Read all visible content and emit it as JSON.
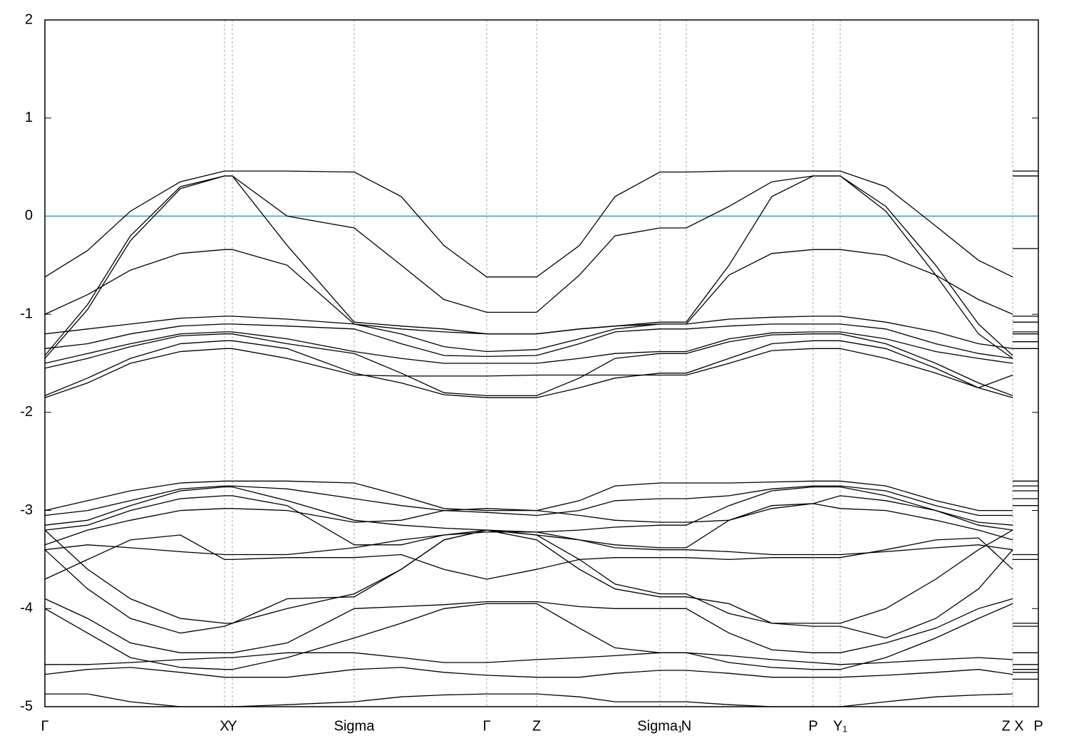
{
  "chart_data": {
    "type": "line",
    "x": [
      0,
      0.6,
      1.2,
      1.9,
      2.52,
      2.63,
      3.4,
      4.34,
      5.0,
      5.6,
      6.2,
      6.9,
      7.5,
      8.0,
      8.63,
      9.0,
      9.6,
      10.2,
      10.78,
      11.16,
      11.8,
      12.5,
      13.1,
      13.58,
      13.58,
      13.58,
      13.94
    ],
    "xlim": [
      0,
      13.94
    ],
    "xticks": [
      {
        "value": 0,
        "label": "Γ"
      },
      {
        "value": 2.52,
        "label": "X"
      },
      {
        "value": 2.63,
        "label": "Y"
      },
      {
        "value": 4.34,
        "label": "Sigma"
      },
      {
        "value": 6.2,
        "label": "Γ"
      },
      {
        "value": 6.9,
        "label": "Z"
      },
      {
        "value": 8.63,
        "label": "Sigma₁"
      },
      {
        "value": 9.0,
        "label": "N"
      },
      {
        "value": 10.78,
        "label": "P"
      },
      {
        "value": 11.16,
        "label": "Y₁"
      },
      {
        "value": 13.58,
        "label": "Z X"
      },
      {
        "value": 13.94,
        "label": "P"
      }
    ],
    "ylim": [
      -5,
      2
    ],
    "yticks": [
      -5,
      -4,
      -3,
      -2,
      -1,
      0,
      1,
      2
    ],
    "xgrid": true,
    "hline": 0,
    "hline_color": "#3a9fb5",
    "series": [
      {
        "color": "#000000",
        "values": [
          -0.62,
          -0.35,
          0.05,
          0.35,
          0.46,
          0.46,
          0.46,
          0.45,
          0.2,
          -0.3,
          -0.62,
          -0.62,
          -0.3,
          0.2,
          0.45,
          0.45,
          0.46,
          0.46,
          0.46,
          0.46,
          0.3,
          -0.1,
          -0.45,
          -0.62,
          null,
          0.46,
          0.46
        ]
      },
      {
        "color": "#000000",
        "values": [
          -1.0,
          -0.8,
          -0.55,
          -0.38,
          -0.34,
          -0.34,
          -0.5,
          -1.1,
          -1.15,
          -1.18,
          -1.2,
          -1.2,
          -1.15,
          -1.12,
          -1.1,
          -1.1,
          -0.6,
          -0.38,
          -0.34,
          -0.34,
          -0.4,
          -0.6,
          -0.85,
          -1.0,
          null,
          -0.33,
          -0.33
        ]
      },
      {
        "color": "#000000",
        "values": [
          -1.42,
          -0.9,
          -0.2,
          0.3,
          0.41,
          0.41,
          0.0,
          -0.12,
          -0.5,
          -0.85,
          -0.98,
          -0.98,
          -0.6,
          -0.2,
          -0.12,
          -0.12,
          0.1,
          0.35,
          0.41,
          0.41,
          0.1,
          -0.5,
          -1.1,
          -1.42,
          null,
          0.41,
          0.41
        ]
      },
      {
        "color": "#000000",
        "values": [
          -1.45,
          -0.95,
          -0.25,
          0.28,
          0.41,
          0.41,
          -0.3,
          -1.08,
          -1.12,
          -1.15,
          -1.2,
          -1.2,
          -1.15,
          -1.12,
          -1.08,
          -1.08,
          -0.5,
          0.2,
          0.41,
          0.41,
          0.05,
          -0.6,
          -1.2,
          -1.45,
          null,
          0.41,
          0.41
        ]
      },
      {
        "color": "#000000",
        "values": [
          -1.2,
          -1.15,
          -1.1,
          -1.04,
          -1.02,
          -1.02,
          -1.05,
          -1.1,
          -1.2,
          -1.33,
          -1.38,
          -1.36,
          -1.25,
          -1.15,
          -1.1,
          -1.1,
          -1.05,
          -1.03,
          -1.02,
          -1.02,
          -1.08,
          -1.18,
          -1.3,
          -1.35,
          null,
          -1.02,
          -1.02
        ]
      },
      {
        "color": "#000000",
        "values": [
          -1.35,
          -1.3,
          -1.2,
          -1.12,
          -1.1,
          -1.1,
          -1.12,
          -1.15,
          -1.3,
          -1.42,
          -1.43,
          -1.42,
          -1.3,
          -1.18,
          -1.15,
          -1.15,
          -1.12,
          -1.1,
          -1.1,
          -1.1,
          -1.15,
          -1.3,
          -1.4,
          -1.45,
          null,
          -1.08,
          -1.08
        ]
      },
      {
        "color": "#000000",
        "values": [
          -1.5,
          -1.4,
          -1.3,
          -1.2,
          -1.18,
          -1.18,
          -1.25,
          -1.38,
          -1.45,
          -1.5,
          -1.5,
          -1.5,
          -1.45,
          -1.4,
          -1.38,
          -1.38,
          -1.25,
          -1.19,
          -1.18,
          -1.18,
          -1.25,
          -1.38,
          -1.45,
          -1.5,
          null,
          -1.18,
          -1.18
        ]
      },
      {
        "color": "#000000",
        "values": [
          -1.55,
          -1.45,
          -1.33,
          -1.22,
          -1.2,
          -1.2,
          -1.3,
          -1.4,
          -1.6,
          -1.8,
          -1.83,
          -1.83,
          -1.65,
          -1.45,
          -1.4,
          -1.4,
          -1.28,
          -1.21,
          -1.2,
          -1.2,
          -1.3,
          -1.5,
          -1.7,
          -1.83,
          null,
          -1.2,
          -1.2
        ]
      },
      {
        "color": "#000000",
        "values": [
          -1.83,
          -1.65,
          -1.45,
          -1.3,
          -1.27,
          -1.27,
          -1.35,
          -1.6,
          -1.7,
          -1.82,
          -1.85,
          -1.85,
          -1.75,
          -1.65,
          -1.6,
          -1.6,
          -1.45,
          -1.3,
          -1.27,
          -1.27,
          -1.35,
          -1.55,
          -1.75,
          -1.85,
          null,
          -1.28,
          -1.28
        ]
      },
      {
        "color": "#000000",
        "values": [
          -1.85,
          -1.7,
          -1.5,
          -1.38,
          -1.35,
          -1.35,
          -1.45,
          -1.62,
          -1.63,
          -1.63,
          -1.63,
          -1.62,
          -1.62,
          -1.62,
          -1.62,
          -1.62,
          -1.5,
          -1.37,
          -1.35,
          -1.35,
          -1.45,
          -1.6,
          -1.75,
          -1.62,
          null,
          -1.35,
          -1.35
        ]
      },
      {
        "color": "#000000",
        "values": [
          -3.0,
          -2.9,
          -2.8,
          -2.72,
          -2.7,
          -2.7,
          -2.7,
          -2.72,
          -2.85,
          -2.98,
          -3.0,
          -3.0,
          -2.9,
          -2.75,
          -2.72,
          -2.72,
          -2.72,
          -2.71,
          -2.7,
          -2.7,
          -2.75,
          -2.9,
          -3.0,
          -3.0,
          null,
          -2.7,
          -2.7
        ]
      },
      {
        "color": "#000000",
        "values": [
          -3.05,
          -3.0,
          -2.9,
          -2.78,
          -2.75,
          -2.75,
          -2.78,
          -2.88,
          -2.95,
          -3.0,
          -3.02,
          -3.05,
          -3.0,
          -2.9,
          -2.88,
          -2.88,
          -2.85,
          -2.78,
          -2.75,
          -2.75,
          -2.8,
          -2.95,
          -3.05,
          -3.05,
          null,
          -2.75,
          -2.75
        ]
      },
      {
        "color": "#000000",
        "values": [
          -3.15,
          -3.1,
          -2.95,
          -2.8,
          -2.76,
          -2.76,
          -2.9,
          -3.1,
          -3.15,
          -3.18,
          -3.2,
          -3.22,
          -3.2,
          -3.17,
          -3.15,
          -3.15,
          -2.95,
          -2.8,
          -2.76,
          -2.76,
          -2.85,
          -3.0,
          -3.12,
          -3.15,
          null,
          -2.8,
          -2.8
        ]
      },
      {
        "color": "#000000",
        "values": [
          -3.2,
          -3.15,
          -3.0,
          -2.88,
          -2.85,
          -2.85,
          -2.95,
          -3.35,
          -3.35,
          -3.25,
          -3.2,
          -3.25,
          -3.3,
          -3.35,
          -3.38,
          -3.38,
          -3.1,
          -2.95,
          -2.93,
          -2.85,
          -2.9,
          -3.0,
          -3.15,
          -3.2,
          null,
          -2.88,
          -2.88
        ]
      },
      {
        "color": "#000000",
        "values": [
          -3.35,
          -3.2,
          -3.1,
          -3.0,
          -2.98,
          -2.98,
          -3.0,
          -3.12,
          -3.1,
          -3.0,
          -2.98,
          -3.0,
          -3.05,
          -3.1,
          -3.12,
          -3.12,
          -3.1,
          -2.98,
          -2.93,
          -2.98,
          -3.0,
          -3.1,
          -3.2,
          -3.3,
          null,
          -2.95,
          -2.95
        ]
      },
      {
        "color": "#000000",
        "values": [
          -3.4,
          -3.35,
          -3.38,
          -3.42,
          -3.45,
          -3.45,
          -3.45,
          -3.38,
          -3.3,
          -3.25,
          -3.22,
          -3.22,
          -3.3,
          -3.38,
          -3.4,
          -3.4,
          -3.42,
          -3.45,
          -3.45,
          -3.45,
          -3.42,
          -3.38,
          -3.35,
          -3.4,
          null,
          -3.45,
          -3.45
        ]
      },
      {
        "color": "#000000",
        "values": [
          -3.7,
          -3.5,
          -3.3,
          -3.25,
          -3.5,
          -3.5,
          -3.48,
          -3.48,
          -3.45,
          -3.6,
          -3.7,
          -3.6,
          -3.5,
          -3.48,
          -3.48,
          -3.48,
          -3.5,
          -3.48,
          -3.48,
          -3.48,
          -3.4,
          -3.3,
          -3.28,
          -3.6,
          null,
          -3.5,
          -3.5
        ]
      },
      {
        "color": "#000000",
        "values": [
          -3.2,
          -3.6,
          -3.9,
          -4.1,
          -4.15,
          -4.15,
          -4.0,
          -3.85,
          -3.6,
          -3.3,
          -3.2,
          -3.25,
          -3.5,
          -3.75,
          -3.85,
          -3.85,
          -4.05,
          -4.15,
          -4.15,
          -4.15,
          -4.0,
          -3.7,
          -3.4,
          -3.2,
          null,
          -4.15,
          -4.15
        ]
      },
      {
        "color": "#000000",
        "values": [
          -3.4,
          -3.8,
          -4.1,
          -4.25,
          -4.18,
          -4.15,
          -3.9,
          -3.88,
          -3.6,
          -3.3,
          -3.2,
          -3.3,
          -3.6,
          -3.8,
          -3.88,
          -3.88,
          -3.95,
          -4.15,
          -4.18,
          -4.18,
          -4.3,
          -4.1,
          -3.8,
          -3.4,
          null,
          -4.18,
          -4.18
        ]
      },
      {
        "color": "#000000",
        "values": [
          -3.9,
          -4.1,
          -4.35,
          -4.45,
          -4.45,
          -4.45,
          -4.35,
          -4.0,
          -3.98,
          -3.96,
          -3.93,
          -3.93,
          -3.98,
          -4.0,
          -4.0,
          -4.0,
          -4.25,
          -4.42,
          -4.45,
          -4.45,
          -4.35,
          -4.2,
          -4.0,
          -3.9,
          null,
          -4.45,
          -4.45
        ]
      },
      {
        "color": "#000000",
        "values": [
          -4.0,
          -4.25,
          -4.5,
          -4.6,
          -4.62,
          -4.62,
          -4.5,
          -4.3,
          -4.15,
          -4.0,
          -3.95,
          -3.95,
          -4.2,
          -4.4,
          -4.45,
          -4.45,
          -4.55,
          -4.6,
          -4.62,
          -4.62,
          -4.5,
          -4.3,
          -4.1,
          -3.95,
          null,
          -4.62,
          -4.62
        ]
      },
      {
        "color": "#000000",
        "values": [
          -4.57,
          -4.57,
          -4.55,
          -4.52,
          -4.5,
          -4.5,
          -4.45,
          -4.45,
          -4.5,
          -4.55,
          -4.55,
          -4.52,
          -4.5,
          -4.48,
          -4.45,
          -4.45,
          -4.48,
          -4.52,
          -4.55,
          -4.57,
          -4.55,
          -4.52,
          -4.5,
          -4.52,
          null,
          -4.57,
          -4.57
        ]
      },
      {
        "color": "#000000",
        "values": [
          -4.67,
          -4.62,
          -4.6,
          -4.65,
          -4.7,
          -4.7,
          -4.7,
          -4.62,
          -4.6,
          -4.65,
          -4.68,
          -4.7,
          -4.7,
          -4.66,
          -4.63,
          -4.63,
          -4.66,
          -4.7,
          -4.7,
          -4.7,
          -4.68,
          -4.65,
          -4.62,
          -4.67,
          null,
          -4.65,
          -4.65
        ]
      },
      {
        "color": "#000000",
        "values": [
          -4.87,
          -4.87,
          -4.95,
          -5.0,
          -5.0,
          -5.0,
          -4.98,
          -4.95,
          -4.9,
          -4.88,
          -4.87,
          -4.87,
          -4.9,
          -4.95,
          -4.95,
          -4.95,
          -4.98,
          -5.0,
          -5.0,
          -5.0,
          -4.95,
          -4.9,
          -4.88,
          -4.87,
          null,
          -4.72,
          -4.72
        ]
      }
    ]
  }
}
